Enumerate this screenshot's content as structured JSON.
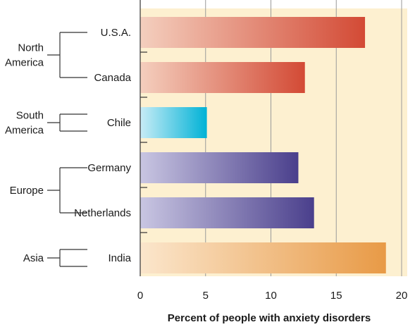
{
  "chart_data": {
    "type": "bar",
    "orientation": "horizontal",
    "title": "",
    "xlabel": "Percent of people with anxiety disorders",
    "ylabel": "",
    "xlim": [
      0,
      20
    ],
    "xticks": [
      0,
      5,
      10,
      15,
      20
    ],
    "grid": true,
    "background": "#fdf0d0",
    "categories": [
      "U.S.A.",
      "Canada",
      "Chile",
      "Germany",
      "Netherlands",
      "India"
    ],
    "values": [
      17.2,
      12.6,
      5.1,
      12.1,
      13.3,
      18.8
    ],
    "groups": [
      {
        "label": "North America",
        "lines": [
          "North",
          "America"
        ],
        "members": [
          "U.S.A.",
          "Canada"
        ]
      },
      {
        "label": "South America",
        "lines": [
          "South",
          "America"
        ],
        "members": [
          "Chile"
        ]
      },
      {
        "label": "Europe",
        "lines": [
          "Europe"
        ],
        "members": [
          "Germany",
          "Netherlands"
        ]
      },
      {
        "label": "Asia",
        "lines": [
          "Asia"
        ],
        "members": [
          "India"
        ]
      }
    ],
    "bar_colors": [
      {
        "start": "#f4cfbe",
        "end": "#d34a35"
      },
      {
        "start": "#f4cfbe",
        "end": "#d34a35"
      },
      {
        "start": "#c8ecf6",
        "end": "#00b2d6"
      },
      {
        "start": "#c9c6e2",
        "end": "#4a3f8c"
      },
      {
        "start": "#c9c6e2",
        "end": "#4a3f8c"
      },
      {
        "start": "#fbe6cc",
        "end": "#e89a46"
      }
    ]
  }
}
